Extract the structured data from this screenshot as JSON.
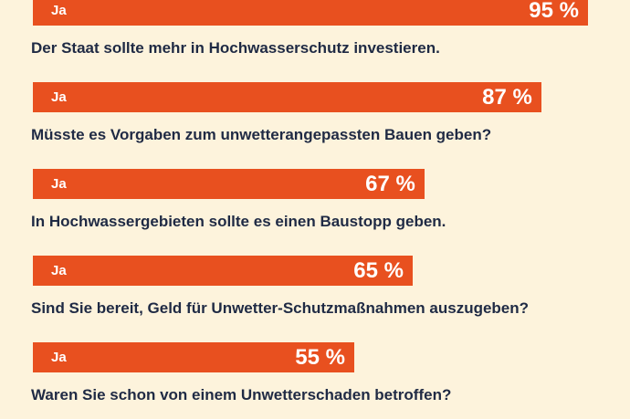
{
  "chart_data": {
    "type": "bar",
    "orientation": "horizontal",
    "xlim": [
      0,
      100
    ],
    "unit": "%",
    "colors": {
      "background": "#fdf3dc",
      "bar": "#e8501f",
      "question_text": "#1f2a44",
      "bar_text": "#ffffff"
    },
    "items": [
      {
        "question": "",
        "answer": "Ja",
        "value": 95,
        "value_label": "95 %"
      },
      {
        "question": "Der Staat sollte mehr in Hochwasserschutz investieren.",
        "answer": "Ja",
        "value": 87,
        "value_label": "87 %"
      },
      {
        "question": "Müsste es Vorgaben zum unwetterangepassten Bauen geben?",
        "answer": "Ja",
        "value": 67,
        "value_label": "67 %"
      },
      {
        "question": "In Hochwassergebieten sollte es einen Baustopp geben.",
        "answer": "Ja",
        "value": 65,
        "value_label": "65 %"
      },
      {
        "question": "Sind Sie bereit, Geld für Unwetter-Schutzmaßnahmen auszugeben?",
        "answer": "Ja",
        "value": 55,
        "value_label": "55 %"
      },
      {
        "question": "Waren Sie schon von einem Unwetterschaden betroffen?",
        "answer": null,
        "value": null,
        "value_label": null
      }
    ]
  }
}
